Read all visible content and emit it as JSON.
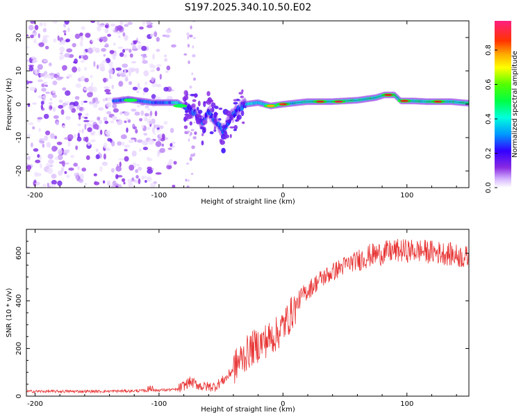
{
  "title": "S197.2025.340.10.50.E02",
  "chart_data": [
    {
      "type": "heatmap",
      "xlabel": "Height of straight line (km)",
      "ylabel": "Frequency (Hz)",
      "xlim": [
        -207,
        150
      ],
      "ylim": [
        -25,
        25
      ],
      "xticks": [
        -200,
        -100,
        0,
        100
      ],
      "yticks": [
        -20,
        -10,
        0,
        10,
        20
      ],
      "colorbar": {
        "label": "Normalized spectral amplitude",
        "range": [
          0,
          0.97
        ],
        "ticks": [
          0.0,
          0.2,
          0.4,
          0.6,
          0.8
        ]
      },
      "ridge": [
        {
          "x": -135,
          "f": 1.0
        },
        {
          "x": -125,
          "f": 1.5
        },
        {
          "x": -115,
          "f": 1.0
        },
        {
          "x": -105,
          "f": 0.5
        },
        {
          "x": -95,
          "f": 0.5
        },
        {
          "x": -85,
          "f": 0.5
        },
        {
          "x": -78,
          "f": -1.0
        },
        {
          "x": -70,
          "f": -3.0
        },
        {
          "x": -65,
          "f": -6.0
        },
        {
          "x": -60,
          "f": -2.0
        },
        {
          "x": -55,
          "f": -5.0
        },
        {
          "x": -48,
          "f": -8.0
        },
        {
          "x": -42,
          "f": -4.0
        },
        {
          "x": -35,
          "f": -1.0
        },
        {
          "x": -30,
          "f": 0.0
        },
        {
          "x": -20,
          "f": 0.5
        },
        {
          "x": -10,
          "f": -0.5
        },
        {
          "x": 0,
          "f": 0.0
        },
        {
          "x": 20,
          "f": 0.8
        },
        {
          "x": 40,
          "f": 0.8
        },
        {
          "x": 60,
          "f": 1.2
        },
        {
          "x": 75,
          "f": 2.0
        },
        {
          "x": 82,
          "f": 2.8
        },
        {
          "x": 90,
          "f": 2.8
        },
        {
          "x": 95,
          "f": 1.0
        },
        {
          "x": 105,
          "f": 1.0
        },
        {
          "x": 115,
          "f": 0.8
        },
        {
          "x": 135,
          "f": 0.8
        },
        {
          "x": 150,
          "f": 0.3
        }
      ],
      "peaks": [
        {
          "x": -123,
          "f": 1.2,
          "v": 0.5
        },
        {
          "x": -83,
          "f": -0.5,
          "v": 0.5
        },
        {
          "x": -10,
          "f": -0.5,
          "v": 0.8
        },
        {
          "x": 0,
          "f": 0.0,
          "v": 0.9
        },
        {
          "x": 30,
          "f": 0.8,
          "v": 0.9
        },
        {
          "x": 45,
          "f": 0.8,
          "v": 0.95
        },
        {
          "x": 85,
          "f": 2.8,
          "v": 0.9
        },
        {
          "x": 98,
          "f": 1.0,
          "v": 0.9
        },
        {
          "x": 125,
          "f": 0.8,
          "v": 0.9
        }
      ]
    },
    {
      "type": "line",
      "xlabel": "Height of straight line (km)",
      "ylabel": "SNR (10 * v/v)",
      "xlim": [
        -207,
        150
      ],
      "ylim": [
        0,
        700
      ],
      "xticks": [
        -200,
        -100,
        0,
        100
      ],
      "yticks": [
        0,
        200,
        400,
        600
      ],
      "series": [
        {
          "name": "SNR",
          "color": "#e83333",
          "envelope": [
            {
              "x": -207,
              "y": 20
            },
            {
              "x": -150,
              "y": 20
            },
            {
              "x": -120,
              "y": 22
            },
            {
              "x": -100,
              "y": 25
            },
            {
              "x": -85,
              "y": 28
            },
            {
              "x": -75,
              "y": 60
            },
            {
              "x": -65,
              "y": 40
            },
            {
              "x": -55,
              "y": 40
            },
            {
              "x": -45,
              "y": 80
            },
            {
              "x": -35,
              "y": 150
            },
            {
              "x": -25,
              "y": 200
            },
            {
              "x": -15,
              "y": 230
            },
            {
              "x": -5,
              "y": 260
            },
            {
              "x": 5,
              "y": 330
            },
            {
              "x": 15,
              "y": 420
            },
            {
              "x": 30,
              "y": 490
            },
            {
              "x": 50,
              "y": 550
            },
            {
              "x": 70,
              "y": 590
            },
            {
              "x": 90,
              "y": 610
            },
            {
              "x": 110,
              "y": 610
            },
            {
              "x": 130,
              "y": 600
            },
            {
              "x": 150,
              "y": 580
            }
          ]
        }
      ]
    }
  ]
}
